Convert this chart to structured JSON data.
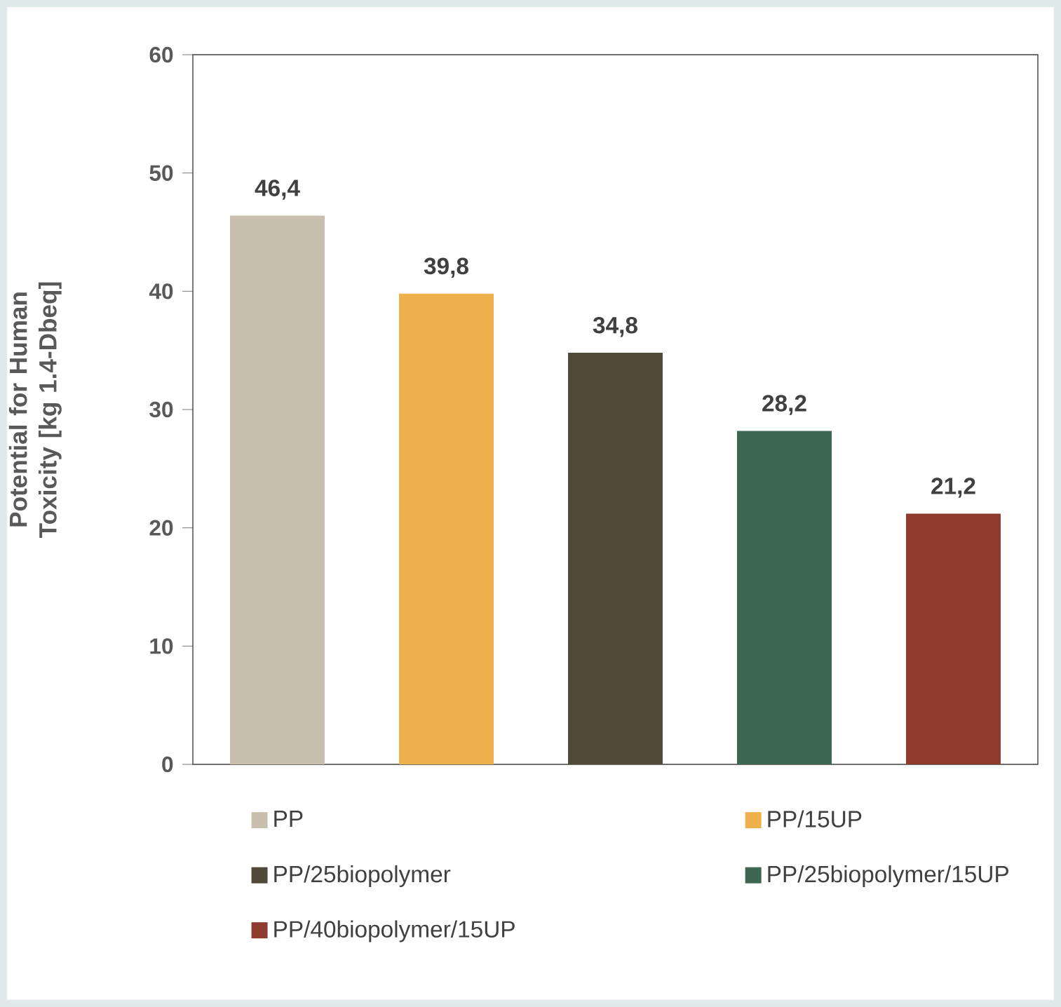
{
  "chart_data": {
    "type": "bar",
    "ylabel": "Potential for Human Toxicity [kg 1.4-Dbeq]",
    "categories": [
      null,
      null,
      null,
      null,
      null
    ],
    "stacked": true,
    "series": [
      {
        "name": "PP",
        "color": "#c8bfac",
        "values": [
          46.4,
          null,
          null,
          null,
          null
        ],
        "value_labels": [
          "46,4",
          null,
          null,
          null,
          null
        ]
      },
      {
        "name": "PP/15UP",
        "color": "#eeb14c",
        "values": [
          null,
          39.8,
          null,
          null,
          null
        ],
        "value_labels": [
          null,
          "39,8",
          null,
          null,
          null
        ]
      },
      {
        "name": "PP/25biopolymer",
        "color": "#524a38",
        "values": [
          null,
          null,
          34.8,
          null,
          null
        ],
        "value_labels": [
          null,
          null,
          "34,8",
          null,
          null
        ]
      },
      {
        "name": "PP/25biopolymer/15UP",
        "color": "#3d6753",
        "values": [
          null,
          null,
          null,
          28.2,
          null
        ],
        "value_labels": [
          null,
          null,
          null,
          "28,2",
          null
        ]
      },
      {
        "name": "PP/40biopolymer/15UP",
        "color": "#8e3a2f",
        "values": [
          null,
          null,
          null,
          null,
          21.2
        ],
        "value_labels": [
          null,
          null,
          null,
          null,
          "21,2"
        ]
      }
    ],
    "ylim": [
      0,
      60
    ],
    "yticks": [
      0,
      10,
      20,
      30,
      40,
      50,
      60
    ],
    "legend": "bottom"
  }
}
